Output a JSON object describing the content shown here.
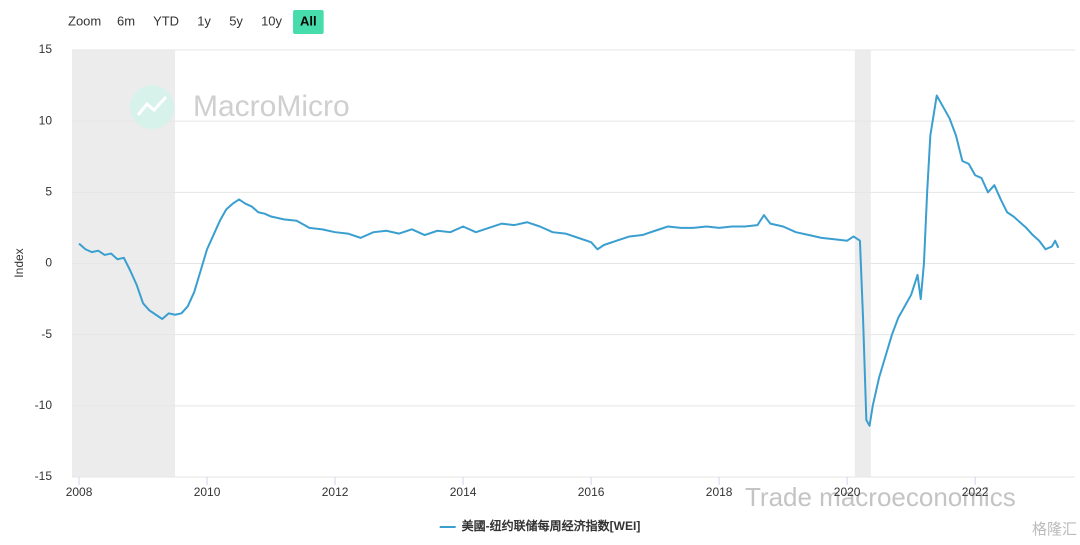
{
  "range_selector": {
    "label": "Zoom",
    "buttons": [
      "6m",
      "YTD",
      "1y",
      "5y",
      "10y",
      "All"
    ],
    "active": 5
  },
  "watermarks": [
    "MacroMicro",
    "Trade macroeconomics",
    "格隆汇"
  ],
  "chart_data": {
    "type": "line",
    "y_label": "Index",
    "x": [
      2008.0,
      2008.1,
      2008.2,
      2008.3,
      2008.4,
      2008.5,
      2008.6,
      2008.7,
      2008.8,
      2008.9,
      2009.0,
      2009.1,
      2009.2,
      2009.3,
      2009.4,
      2009.5,
      2009.6,
      2009.7,
      2009.8,
      2009.9,
      2010.0,
      2010.1,
      2010.2,
      2010.3,
      2010.4,
      2010.5,
      2010.6,
      2010.7,
      2010.8,
      2010.9,
      2011.0,
      2011.2,
      2011.4,
      2011.6,
      2011.8,
      2012.0,
      2012.2,
      2012.4,
      2012.6,
      2012.8,
      2013.0,
      2013.2,
      2013.4,
      2013.6,
      2013.8,
      2014.0,
      2014.2,
      2014.4,
      2014.6,
      2014.8,
      2015.0,
      2015.2,
      2015.4,
      2015.6,
      2015.8,
      2016.0,
      2016.1,
      2016.2,
      2016.4,
      2016.6,
      2016.8,
      2017.0,
      2017.2,
      2017.4,
      2017.6,
      2017.8,
      2018.0,
      2018.2,
      2018.4,
      2018.6,
      2018.7,
      2018.8,
      2019.0,
      2019.2,
      2019.4,
      2019.6,
      2019.8,
      2020.0,
      2020.1,
      2020.2,
      2020.25,
      2020.3,
      2020.35,
      2020.4,
      2020.5,
      2020.6,
      2020.7,
      2020.8,
      2020.9,
      2021.0,
      2021.1,
      2021.15,
      2021.2,
      2021.25,
      2021.3,
      2021.4,
      2021.5,
      2021.6,
      2021.7,
      2021.8,
      2021.9,
      2022.0,
      2022.1,
      2022.2,
      2022.3,
      2022.4,
      2022.5,
      2022.6,
      2022.7,
      2022.8,
      2022.9,
      2023.0,
      2023.1,
      2023.2,
      2023.25,
      2023.3
    ],
    "series": [
      {
        "name": "美國-纽约联储每周经济指数[WEI]",
        "color": "#3a9fd0",
        "values": [
          1.4,
          1.0,
          0.8,
          0.9,
          0.6,
          0.7,
          0.3,
          0.4,
          -0.5,
          -1.5,
          -2.8,
          -3.3,
          -3.6,
          -3.9,
          -3.5,
          -3.6,
          -3.5,
          -3.0,
          -2.0,
          -0.5,
          1.0,
          2.0,
          3.0,
          3.8,
          4.2,
          4.5,
          4.2,
          4.0,
          3.6,
          3.5,
          3.3,
          3.1,
          3.0,
          2.5,
          2.4,
          2.2,
          2.1,
          1.8,
          2.2,
          2.3,
          2.1,
          2.4,
          2.0,
          2.3,
          2.2,
          2.6,
          2.2,
          2.5,
          2.8,
          2.7,
          2.9,
          2.6,
          2.2,
          2.1,
          1.8,
          1.5,
          1.0,
          1.3,
          1.6,
          1.9,
          2.0,
          2.3,
          2.6,
          2.5,
          2.5,
          2.6,
          2.5,
          2.6,
          2.6,
          2.7,
          3.4,
          2.8,
          2.6,
          2.2,
          2.0,
          1.8,
          1.7,
          1.6,
          1.9,
          1.6,
          -4.0,
          -11.0,
          -11.4,
          -10.0,
          -8.0,
          -6.5,
          -5.0,
          -3.8,
          -3.0,
          -2.2,
          -0.8,
          -2.5,
          0.0,
          5.0,
          9.0,
          11.8,
          11.0,
          10.2,
          9.0,
          7.2,
          7.0,
          6.2,
          6.0,
          5.0,
          5.5,
          4.5,
          3.6,
          3.3,
          2.9,
          2.5,
          2.0,
          1.6,
          1.0,
          1.2,
          1.6,
          1.1
        ]
      }
    ],
    "recessions": [
      [
        2007.89,
        2009.5
      ],
      [
        2020.12,
        2020.37
      ]
    ],
    "xlim": [
      2007.89,
      2023.56
    ],
    "xticks": [
      2008,
      2010,
      2012,
      2014,
      2016,
      2018,
      2020,
      2022
    ],
    "ylim": [
      -15,
      15
    ],
    "yticks": [
      -15,
      -10,
      -5,
      0,
      5,
      10,
      15
    ],
    "grid": true,
    "legend": "bottom"
  }
}
